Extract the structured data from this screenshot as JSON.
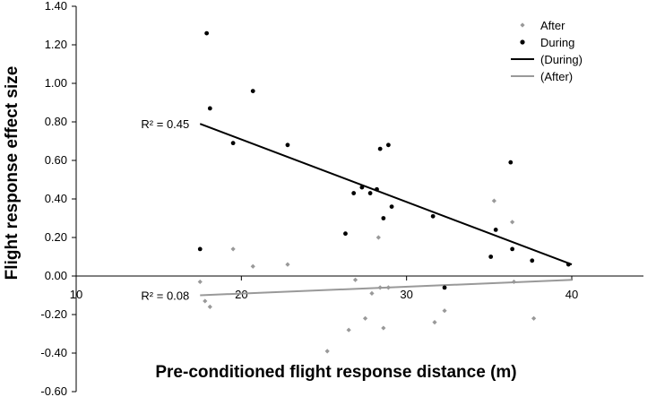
{
  "chart_data": {
    "type": "scatter",
    "xlabel": "Pre-conditioned flight response distance (m)",
    "ylabel": "Flight response effect size",
    "xlim": [
      10,
      40
    ],
    "ylim": [
      -0.6,
      1.4
    ],
    "x_ticks": [
      "10",
      "20",
      "30",
      "40"
    ],
    "y_ticks": [
      "-0.60",
      "-0.40",
      "-0.20",
      "0.00",
      "0.20",
      "0.40",
      "0.60",
      "0.80",
      "1.00",
      "1.20",
      "1.40"
    ],
    "legend_position": "top-right",
    "series": [
      {
        "name": "After",
        "marker": "diamond",
        "color": "#999999",
        "points": [
          [
            17.5,
            -0.03
          ],
          [
            17.8,
            -0.13
          ],
          [
            18.1,
            -0.16
          ],
          [
            19.5,
            0.14
          ],
          [
            20.7,
            0.05
          ],
          [
            22.8,
            0.06
          ],
          [
            25.2,
            -0.39
          ],
          [
            26.5,
            -0.28
          ],
          [
            26.9,
            -0.02
          ],
          [
            27.5,
            -0.22
          ],
          [
            27.9,
            -0.09
          ],
          [
            28.3,
            0.2
          ],
          [
            28.4,
            -0.06
          ],
          [
            28.6,
            -0.27
          ],
          [
            28.9,
            -0.06
          ],
          [
            31.7,
            -0.24
          ],
          [
            32.3,
            -0.18
          ],
          [
            35.3,
            0.39
          ],
          [
            36.4,
            0.28
          ],
          [
            36.5,
            -0.03
          ],
          [
            37.7,
            -0.22
          ]
        ]
      },
      {
        "name": "During",
        "marker": "circle",
        "color": "#000000",
        "points": [
          [
            17.5,
            0.14
          ],
          [
            17.9,
            1.26
          ],
          [
            18.1,
            0.87
          ],
          [
            19.5,
            0.69
          ],
          [
            20.7,
            0.96
          ],
          [
            22.8,
            0.68
          ],
          [
            26.3,
            0.22
          ],
          [
            26.8,
            0.43
          ],
          [
            27.3,
            0.46
          ],
          [
            27.8,
            0.43
          ],
          [
            28.2,
            0.45
          ],
          [
            28.4,
            0.66
          ],
          [
            28.6,
            0.3
          ],
          [
            28.9,
            0.68
          ],
          [
            29.1,
            0.36
          ],
          [
            31.6,
            0.31
          ],
          [
            32.3,
            -0.06
          ],
          [
            35.1,
            0.1
          ],
          [
            35.4,
            0.24
          ],
          [
            36.3,
            0.59
          ],
          [
            36.4,
            0.14
          ],
          [
            37.6,
            0.08
          ],
          [
            39.8,
            0.06
          ]
        ]
      }
    ],
    "trendlines": [
      {
        "name": "(During)",
        "color": "#000000",
        "from": [
          17.5,
          0.79
        ],
        "to": [
          40,
          0.06
        ],
        "label": "R² = 0.45"
      },
      {
        "name": "(After)",
        "color": "#999999",
        "from": [
          17.5,
          -0.1
        ],
        "to": [
          40,
          -0.02
        ],
        "label": "R² = 0.08"
      }
    ]
  }
}
